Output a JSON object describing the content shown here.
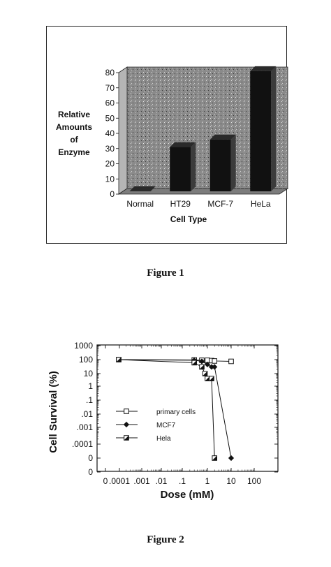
{
  "figures": [
    {
      "caption": "Figure 1"
    },
    {
      "caption": "Figure 2"
    }
  ],
  "chart_data": [
    {
      "type": "bar",
      "style": "3d",
      "title": "",
      "ylabel_lines": [
        "Relative",
        "Amounts",
        "of",
        "Enzyme"
      ],
      "xlabel": "Cell Type",
      "categories": [
        "Normal",
        "HT29",
        "MCF-7",
        "HeLa"
      ],
      "values": [
        2,
        31,
        36,
        81
      ],
      "yticks": [
        "0",
        "10",
        "20",
        "30",
        "40",
        "50",
        "60",
        "70",
        "80"
      ],
      "ylim": [
        0,
        80
      ],
      "grid": false,
      "colors": {
        "bar": "#111111",
        "plot_background": "#8a8a8a"
      }
    },
    {
      "type": "line",
      "title": "",
      "xlabel": "Dose (mM)",
      "ylabel": "Cell Survival (%)",
      "xscale": "log",
      "yscale": "log",
      "xticks": [
        "0",
        ".0001",
        ".001",
        ".01",
        ".1",
        "1",
        "10",
        "100"
      ],
      "yticks": [
        "0",
        "0",
        ".0001",
        ".001",
        ".01",
        ".1",
        "1",
        "10",
        "100",
        "1000"
      ],
      "legend_position": "center-left",
      "series": [
        {
          "name": "primary cells",
          "marker": "open-square",
          "x": [
            0,
            0.3,
            0.6,
            1,
            1.5,
            2,
            10
          ],
          "y": [
            100,
            95,
            90,
            90,
            85,
            80,
            75
          ]
        },
        {
          "name": "MCF7",
          "marker": "filled-diamond",
          "x": [
            0,
            0.3,
            0.6,
            1,
            1.5,
            2,
            10
          ],
          "y": [
            100,
            90,
            75,
            45,
            30,
            30,
            0
          ]
        },
        {
          "name": "Hela",
          "marker": "half-filled-square",
          "x": [
            0,
            0.3,
            0.6,
            0.8,
            1,
            1.5,
            2
          ],
          "y": [
            100,
            60,
            30,
            10,
            4,
            4,
            0
          ]
        }
      ]
    }
  ]
}
